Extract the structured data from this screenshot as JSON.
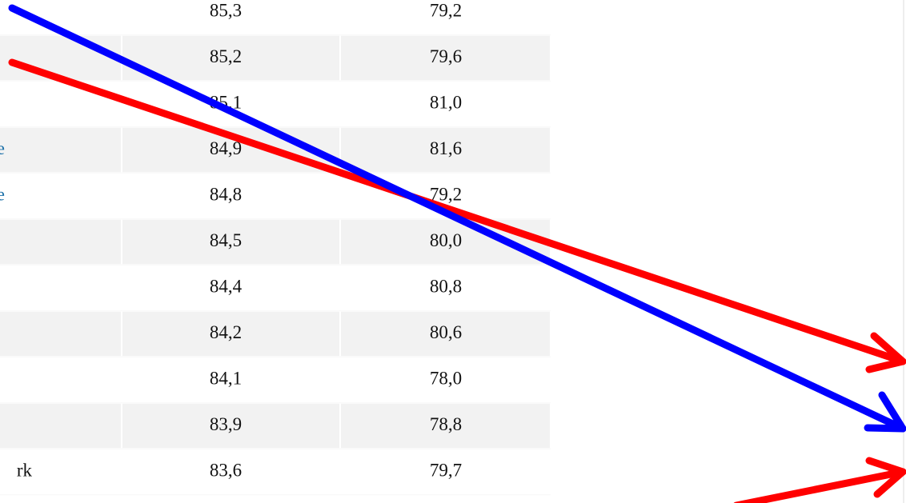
{
  "table": {
    "rows": [
      {
        "values": [
          "85,3",
          "79,2"
        ]
      },
      {
        "values": [
          "85,2",
          "79,6"
        ]
      },
      {
        "values": [
          "85,1",
          "81,0"
        ]
      },
      {
        "label": "e",
        "values": [
          "84,9",
          "81,6"
        ]
      },
      {
        "label": "e",
        "values": [
          "84,8",
          "79,2"
        ]
      },
      {
        "values": [
          "84,5",
          "80,0"
        ]
      },
      {
        "values": [
          "84,4",
          "80,8"
        ]
      },
      {
        "values": [
          "84,2",
          "80,6"
        ]
      },
      {
        "values": [
          "84,1",
          "78,0"
        ]
      },
      {
        "values": [
          "83,9",
          "78,8"
        ]
      },
      {
        "label": "rk",
        "values": [
          "83,6",
          "79,7"
        ]
      }
    ]
  }
}
